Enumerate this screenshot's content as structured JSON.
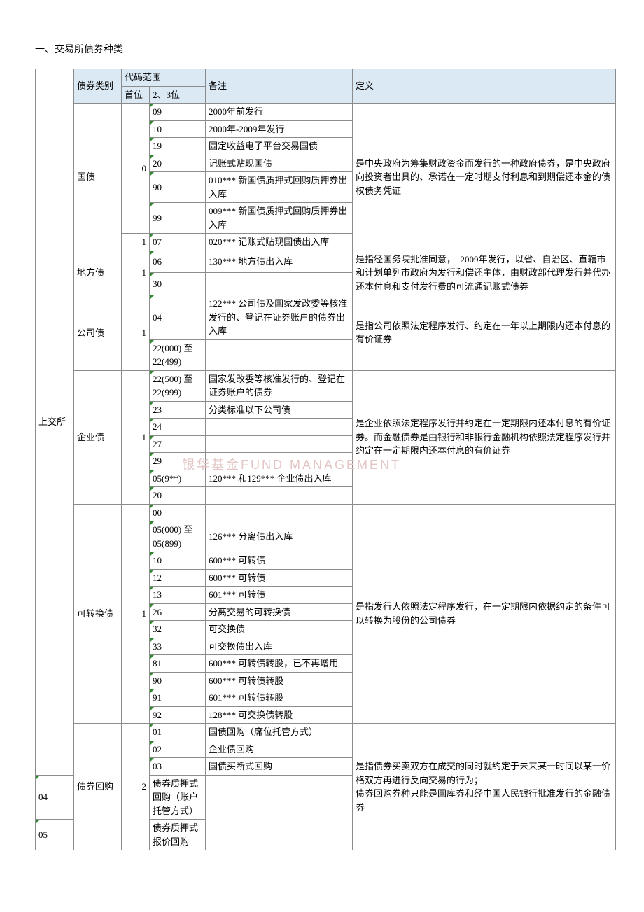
{
  "title": "一、交易所债券种类",
  "headers": {
    "category": "债券类别",
    "code_range": "代码范围",
    "head_digit": "首位",
    "sub_digit": "2、3位",
    "note": "备注",
    "definition": "定义"
  },
  "market": "上交所",
  "watermark": "银华基金FUND MANAGEMENT",
  "rows": {
    "guozhai": {
      "name": "国债",
      "head1": "0",
      "head2": "1",
      "r1_sub": "09",
      "r1_note": "2000年前发行",
      "r2_sub": "10",
      "r2_note": "2000年-2009年发行",
      "r3_sub": "19",
      "r3_note": "固定收益电子平台交易国债",
      "r4_sub": "20",
      "r4_note": "记账式贴现国债",
      "r5_sub": "90",
      "r5_note": "010*** 新国债质押式回购质押券出入库",
      "r6_sub": "99",
      "r6_note": "009*** 新国债质押式回购质押券出入库",
      "r7_sub": "07",
      "r7_note": "020*** 记账式贴现国债出入库",
      "def": "是中央政府为筹集财政资金而发行的一种政府债券，是中央政府　向投资者出具的、承诺在一定时期支付利息和到期偿还本金的债权债务凭证"
    },
    "difang": {
      "name": "地方债",
      "head": "1",
      "r1_sub": "06",
      "r1_note": "130*** 地方债出入库",
      "r2_sub": "30",
      "def": "是指经国务院批准同意，　2009年发行，以省、自治区、直辖市和计划单列市政府为发行和偿还主体，由财政部代理发行并代办还本付息和支付发行费的可流通记账式债券"
    },
    "gongsi": {
      "name": "公司债",
      "head": "1",
      "r1_sub": "04",
      "r1_note": "122*** 公司债及国家发改委等核准发行的、登记在证券账户的债券出入库",
      "r2_sub": "22(000) 至22(499)",
      "def": "是指公司依照法定程序发行、约定在一年以上期限内还本付息的有价证券"
    },
    "qiye": {
      "name": "企业债",
      "head": "1",
      "r1_sub": "22(500) 至22(999)",
      "r1_note": "国家发改委等核准发行的、登记在证券账户的债券",
      "r2_sub": "23",
      "r2_note": "分类标准以下公司债",
      "r3_sub": "24",
      "r4_sub": "27",
      "r5_sub": "29",
      "r6_sub": "05(9**)",
      "r6_note": "120*** 和129*** 企业债出入库",
      "r7_sub": "20",
      "def": "是企业依照法定程序发行并约定在一定期限内还本付息的有价证券。而金融债券是由银行和非银行金融机构依照法定程序发行并约定在一定期限内还本付息的有价证券"
    },
    "kzh": {
      "name": "可转换债",
      "head": "1",
      "r1_sub": "00",
      "r2_sub": "05(000) 至05(899)",
      "r2_note": "126*** 分离债出入库",
      "r3_sub": "10",
      "r3_note": "600*** 可转债",
      "r4_sub": "12",
      "r4_note": "600*** 可转债",
      "r5_sub": "13",
      "r5_note": "601*** 可转债",
      "r6_sub": "26",
      "r6_note": "分离交易的可转换债",
      "r7_sub": "32",
      "r7_note": "可交换债",
      "r8_sub": "33",
      "r8_note": "可交换债出入库",
      "r9_sub": "81",
      "r9_note": "600*** 可转债转股，已不再增用",
      "r10_sub": "90",
      "r10_note": "600*** 可转债转股",
      "r11_sub": "91",
      "r11_note": "601*** 可转债转股",
      "r12_sub": "92",
      "r12_note": "128*** 可交换债转股",
      "def": "是指发行人依照法定程序发行，在一定期限内依据约定的条件可以转换为股份的公司债券"
    },
    "huigou": {
      "name": "债券回购",
      "head": "2",
      "r1_sub": "01",
      "r1_note": "国债回购（席位托管方式）",
      "r2_sub": "02",
      "r2_note": "企业债回购",
      "r3_sub": "03",
      "r3_note": "国债买断式回购",
      "r4_sub": "04",
      "r4_note": "债券质押式回购（账户托管方式）",
      "r5_sub": "05",
      "r5_note": "债券质押式报价回购",
      "def": "是指债券买卖双方在成交的同时就约定于未来某一时间以某一价格双方再进行反向交易的行为；\n债券回购券种只能是国库券和经中国人民银行批准发行的金融债券"
    }
  }
}
